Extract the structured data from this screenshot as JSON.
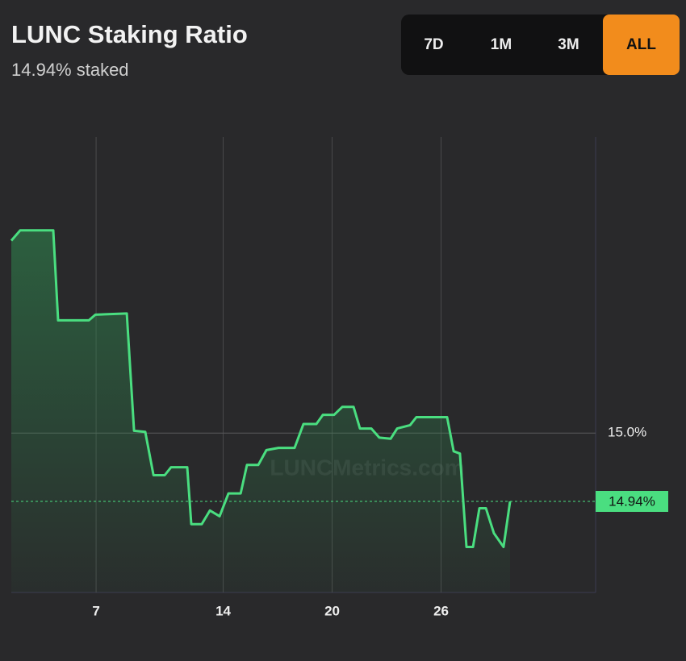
{
  "range_buttons": [
    "7D",
    "1M",
    "3M",
    "ALL"
  ],
  "selected_range": "ALL",
  "chart_data": {
    "type": "line",
    "title": "LUNC Staking Ratio",
    "subtitle": "14.94% staked",
    "watermark": "LUNCMetrics.com",
    "x": [
      2.33,
      2.82,
      4.64,
      4.91,
      6.6,
      6.96,
      8.69,
      9.09,
      9.71,
      10.16,
      10.78,
      11.13,
      12.02,
      12.24,
      12.82,
      13.27,
      13.8,
      14.29,
      14.96,
      15.31,
      15.93,
      16.38,
      17.04,
      17.93,
      18.42,
      19.13,
      19.49,
      20.11,
      20.56,
      21.18,
      21.53,
      22.16,
      22.6,
      23.22,
      23.58,
      24.29,
      24.64,
      26.33,
      26.69,
      27.04,
      27.4,
      27.76,
      28.11,
      28.47,
      28.91,
      29.44,
      29.8
    ],
    "series": [
      {
        "name": "Staking ratio",
        "color": "#4ade80",
        "values": [
          15.169,
          15.178,
          15.178,
          15.099,
          15.099,
          15.104,
          15.105,
          15.002,
          15.001,
          14.963,
          14.963,
          14.97,
          14.97,
          14.92,
          14.92,
          14.932,
          14.927,
          14.947,
          14.947,
          14.972,
          14.972,
          14.985,
          14.987,
          14.987,
          15.008,
          15.008,
          15.016,
          15.016,
          15.023,
          15.023,
          15.004,
          15.004,
          14.996,
          14.995,
          15.004,
          15.007,
          15.014,
          15.014,
          14.984,
          14.982,
          14.9,
          14.9,
          14.934,
          14.934,
          14.912,
          14.9,
          14.94
        ]
      }
    ],
    "xlim": [
      2.33,
      34.51
    ],
    "xticks": [
      7,
      14,
      20,
      26
    ],
    "ylim": [
      14.86,
      15.26
    ],
    "yticks": [
      {
        "value": 15,
        "label": "15.0%"
      }
    ],
    "current_value": {
      "value": 14.94,
      "label": "14.94%"
    },
    "grid": true
  }
}
